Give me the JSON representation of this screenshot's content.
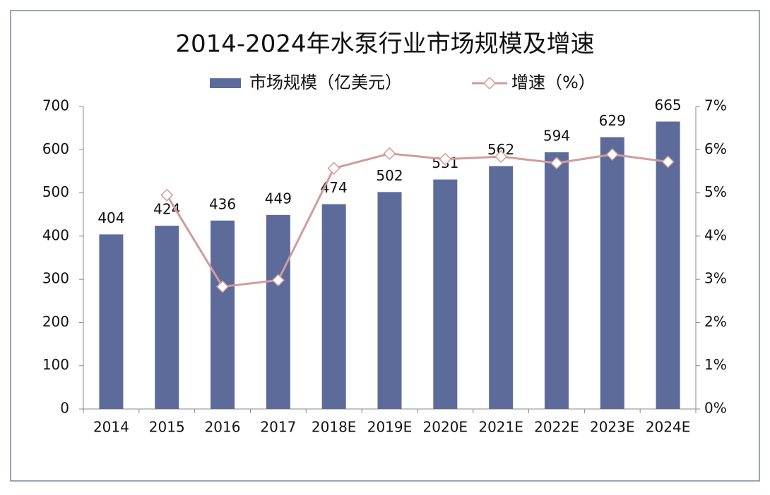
{
  "chart_data": {
    "type": "bar",
    "title": "2014-2024年水泵行业市场规模及增速",
    "categories": [
      "2014",
      "2015",
      "2016",
      "2017",
      "2018E",
      "2019E",
      "2020E",
      "2021E",
      "2022E",
      "2023E",
      "2024E"
    ],
    "series": [
      {
        "name": "市场规模（亿美元）",
        "type": "bar",
        "color": "#5d6b9b",
        "values": [
          404,
          424,
          436,
          449,
          474,
          502,
          531,
          562,
          594,
          629,
          665
        ]
      },
      {
        "name": "增速（%）",
        "type": "line",
        "axis": "y2",
        "color": "#d29c9a",
        "values": [
          null,
          4.95,
          2.83,
          2.98,
          5.57,
          5.91,
          5.78,
          5.84,
          5.69,
          5.89,
          5.72
        ]
      }
    ],
    "ylim": [
      0,
      700
    ],
    "yticks": [
      0,
      100,
      200,
      300,
      400,
      500,
      600,
      700
    ],
    "y2lim": [
      0,
      7
    ],
    "y2ticks": [
      {
        "value": 0,
        "label": "0%"
      },
      {
        "value": 1,
        "label": "1%"
      },
      {
        "value": 2,
        "label": "2%"
      },
      {
        "value": 3,
        "label": "3%"
      },
      {
        "value": 4,
        "label": "4%"
      },
      {
        "value": 5,
        "label": "5%"
      },
      {
        "value": 6,
        "label": "6%"
      },
      {
        "value": 7,
        "label": "7%"
      }
    ],
    "legend": "top"
  }
}
